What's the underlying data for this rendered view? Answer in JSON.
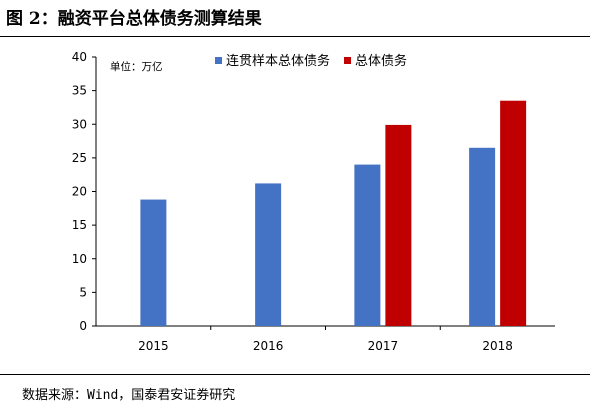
{
  "figure": {
    "title": "图 2：融资平台总体债务测算结果",
    "source": "数据来源：Wind，国泰君安证券研究"
  },
  "chart_data": {
    "type": "bar",
    "unit_label": "单位：万亿",
    "categories": [
      "2015",
      "2016",
      "2017",
      "2018"
    ],
    "series": [
      {
        "name": "连贯样本总体债务",
        "color": "#4472C4",
        "values": [
          18.8,
          21.2,
          24.0,
          26.5
        ]
      },
      {
        "name": "总体债务",
        "color": "#C00000",
        "values": [
          null,
          null,
          29.9,
          33.5
        ]
      }
    ],
    "ylim": [
      0,
      40
    ],
    "yticks": [
      0,
      5,
      10,
      15,
      20,
      25,
      30,
      35,
      40
    ],
    "grid": false,
    "legend_position": "top-right"
  }
}
